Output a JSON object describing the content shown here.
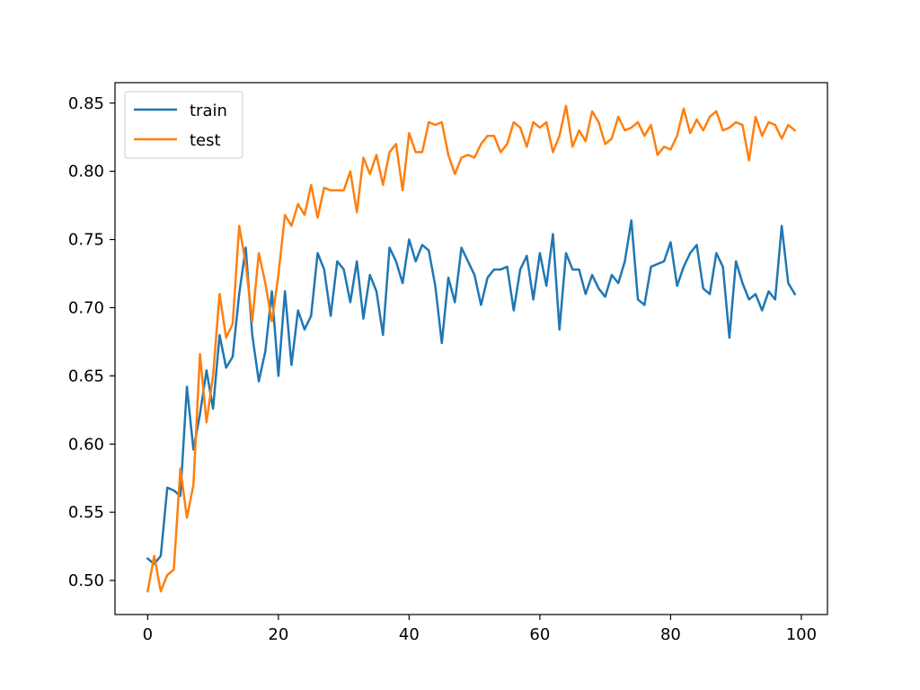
{
  "chart_data": {
    "type": "line",
    "title": "",
    "xlabel": "",
    "ylabel": "",
    "xlim": [
      -5,
      104
    ],
    "ylim": [
      0.475,
      0.865
    ],
    "x_ticks": [
      0,
      20,
      40,
      60,
      80,
      100
    ],
    "y_ticks": [
      0.5,
      0.55,
      0.6,
      0.65,
      0.7,
      0.75,
      0.8,
      0.85
    ],
    "x_tick_labels": [
      "0",
      "20",
      "40",
      "60",
      "80",
      "100"
    ],
    "y_tick_labels": [
      "0.50",
      "0.55",
      "0.60",
      "0.65",
      "0.70",
      "0.75",
      "0.80",
      "0.85"
    ],
    "grid": false,
    "legend_position": "top-left",
    "series": [
      {
        "name": "train",
        "color": "#1f77b4",
        "values": [
          0.516,
          0.512,
          0.518,
          0.568,
          0.566,
          0.562,
          0.642,
          0.596,
          0.622,
          0.654,
          0.626,
          0.68,
          0.656,
          0.664,
          0.71,
          0.744,
          0.68,
          0.646,
          0.668,
          0.712,
          0.65,
          0.712,
          0.658,
          0.698,
          0.684,
          0.694,
          0.74,
          0.728,
          0.694,
          0.734,
          0.728,
          0.704,
          0.734,
          0.692,
          0.724,
          0.712,
          0.68,
          0.744,
          0.734,
          0.718,
          0.75,
          0.734,
          0.746,
          0.742,
          0.716,
          0.674,
          0.722,
          0.704,
          0.744,
          0.734,
          0.724,
          0.702,
          0.722,
          0.728,
          0.728,
          0.73,
          0.698,
          0.728,
          0.738,
          0.706,
          0.74,
          0.716,
          0.754,
          0.684,
          0.74,
          0.728,
          0.728,
          0.71,
          0.724,
          0.714,
          0.708,
          0.724,
          0.718,
          0.734,
          0.764,
          0.706,
          0.702,
          0.73,
          0.732,
          0.734,
          0.748,
          0.716,
          0.73,
          0.74,
          0.746,
          0.714,
          0.71,
          0.74,
          0.73,
          0.678,
          0.734,
          0.718,
          0.706,
          0.71,
          0.698,
          0.712,
          0.706,
          0.76,
          0.718,
          0.71
        ]
      },
      {
        "name": "test",
        "color": "#ff7f0e",
        "values": [
          0.492,
          0.518,
          0.492,
          0.504,
          0.508,
          0.582,
          0.546,
          0.57,
          0.666,
          0.616,
          0.65,
          0.71,
          0.678,
          0.688,
          0.76,
          0.732,
          0.69,
          0.74,
          0.718,
          0.69,
          0.724,
          0.768,
          0.76,
          0.776,
          0.768,
          0.79,
          0.766,
          0.788,
          0.786,
          0.786,
          0.786,
          0.8,
          0.77,
          0.81,
          0.798,
          0.812,
          0.79,
          0.814,
          0.82,
          0.786,
          0.828,
          0.814,
          0.814,
          0.836,
          0.834,
          0.836,
          0.812,
          0.798,
          0.81,
          0.812,
          0.81,
          0.82,
          0.826,
          0.826,
          0.814,
          0.82,
          0.836,
          0.832,
          0.818,
          0.836,
          0.832,
          0.836,
          0.814,
          0.826,
          0.848,
          0.818,
          0.83,
          0.822,
          0.844,
          0.836,
          0.82,
          0.824,
          0.84,
          0.83,
          0.832,
          0.836,
          0.826,
          0.834,
          0.812,
          0.818,
          0.816,
          0.826,
          0.846,
          0.828,
          0.838,
          0.83,
          0.84,
          0.844,
          0.83,
          0.832,
          0.836,
          0.834,
          0.808,
          0.84,
          0.826,
          0.836,
          0.834,
          0.824,
          0.834,
          0.83
        ]
      }
    ]
  }
}
